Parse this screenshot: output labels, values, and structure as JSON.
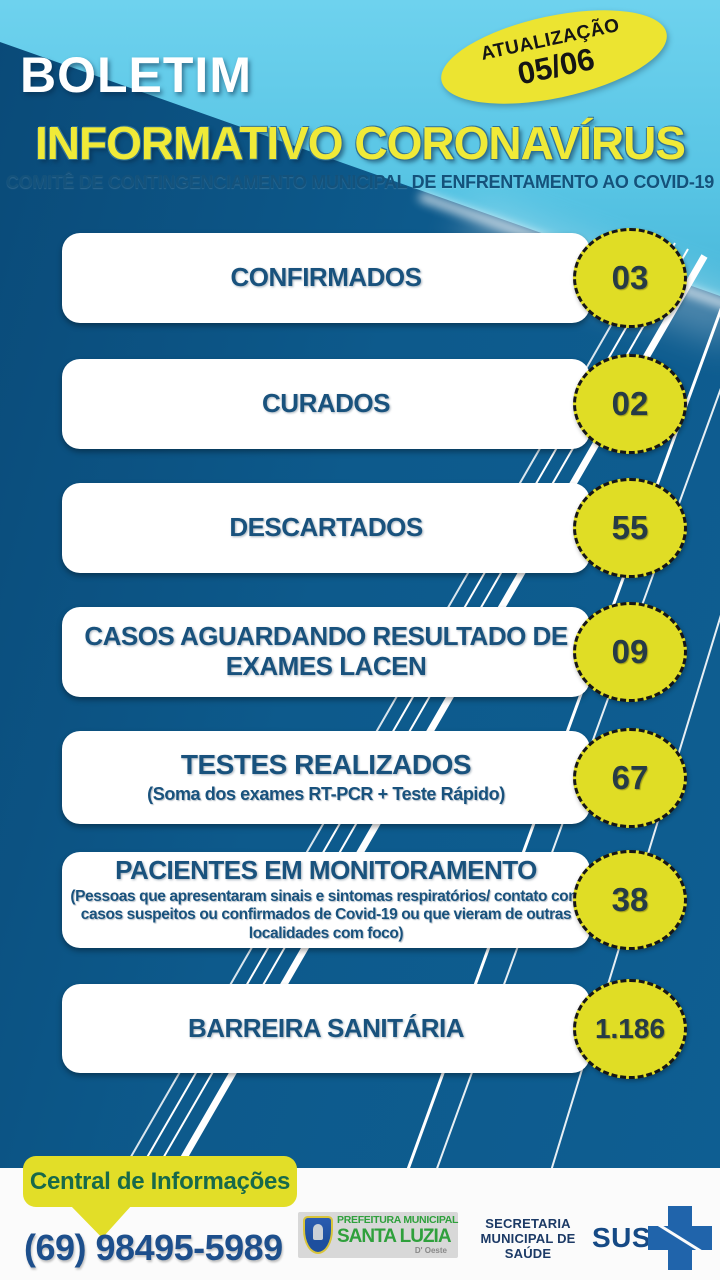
{
  "colors": {
    "dark_blue": "#0d5a8c",
    "light_blue": "#57c4e4",
    "accent_yellow": "#e0dd25",
    "title_yellow": "#f0ea38",
    "label_blue": "#19527d",
    "phone_blue": "#1d4f8c",
    "info_green": "#17694a"
  },
  "header": {
    "boletim": "BOLETIM",
    "title": "INFORMATIVO CORONAVÍRUS",
    "subtitle": "COMITÊ DE CONTINGENCIAMENTO MUNICIPAL DE ENFRENTAMENTO AO COVID-19",
    "badge": {
      "label": "ATUALIZAÇÃO",
      "date": "05/06"
    }
  },
  "stats": [
    {
      "label": "CONFIRMADOS",
      "value": "03"
    },
    {
      "label": "CURADOS",
      "value": "02"
    },
    {
      "label": "DESCARTADOS",
      "value": "55"
    },
    {
      "label": "CASOS AGUARDANDO RESULTADO DE EXAMES LACEN",
      "value": "09"
    },
    {
      "label": "TESTES REALIZADOS",
      "sublabel": "(Soma dos exames RT-PCR + Teste Rápido)",
      "value": "67"
    },
    {
      "label": "PACIENTES EM MONITORAMENTO",
      "sublabel": "(Pessoas que apresentaram sinais e sintomas respiratórios/ contato com casos suspeitos ou confirmados de Covid-19 ou que vieram de outras localidades com foco)",
      "value": "38"
    },
    {
      "label": "BARREIRA SANITÁRIA",
      "value": "1.186"
    }
  ],
  "footer": {
    "info_label": "Central de Informações",
    "phone": "(69) 98495-5989",
    "prefeitura": {
      "line1": "PREFEITURA MUNICIPAL",
      "line2": "SANTA LUZIA",
      "line3": "D' Oeste"
    },
    "secretaria": "SECRETARIA MUNICIPAL DE SAÚDE",
    "sus": "SUS"
  }
}
